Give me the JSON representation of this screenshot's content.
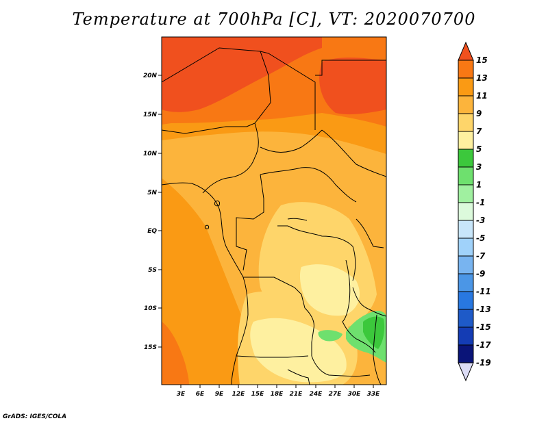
{
  "title": "Temperature at 700hPa [C], VT: 2020070700",
  "credit": "GrADS: IGES/COLA",
  "map": {
    "lat_labels": [
      "20N",
      "15N",
      "10N",
      "5N",
      "EQ",
      "5S",
      "10S",
      "15S"
    ],
    "lon_labels": [
      "3E",
      "6E",
      "9E",
      "12E",
      "15E",
      "18E",
      "21E",
      "24E",
      "27E",
      "30E",
      "33E"
    ]
  },
  "legend": {
    "labels": [
      "15",
      "13",
      "11",
      "9",
      "7",
      "5",
      "3",
      "1",
      "-1",
      "-3",
      "-5",
      "-7",
      "-9",
      "-11",
      "-13",
      "-15",
      "-17",
      "-19"
    ],
    "colors": [
      "#f0501e",
      "#f87814",
      "#fa9a14",
      "#fcb43c",
      "#fed56a",
      "#fef0a0",
      "#3cc83c",
      "#6ee06e",
      "#a0f0a0",
      "#dcfadc",
      "#c8e6fa",
      "#a0d2fa",
      "#78b4f0",
      "#4b96e6",
      "#2878e1",
      "#1e5ac8",
      "#143cb4",
      "#0a1478"
    ]
  }
}
